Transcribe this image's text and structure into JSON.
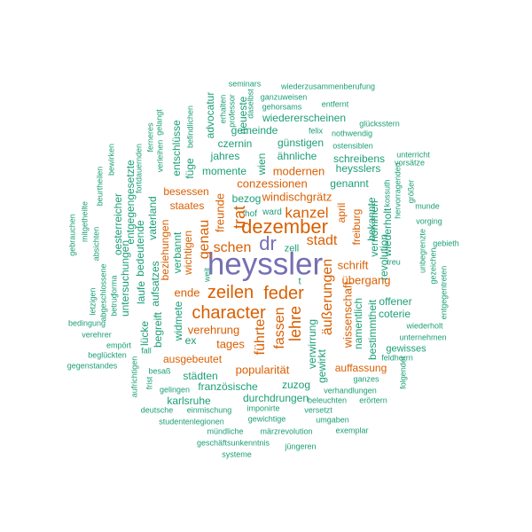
{
  "colors": {
    "small": "#1b9e77",
    "medium": "#d95f02",
    "large": "#7570b3"
  },
  "words": {
    "heyssler": "heyssler",
    "dr": "dr",
    "dezember": "dezember",
    "character": "character",
    "zeilen": "zeilen",
    "feder": "feder",
    "kanzel": "kanzel",
    "lehre": "lehre",
    "stadt": "stadt",
    "schen": "schen",
    "genau": "genau",
    "trat": "trat",
    "fassen": "fassen",
    "fuehrte": "führte",
    "aeusserungen": "äußerungen",
    "windischgraetz": "windischgrätz",
    "conzessionen": "conzessionen",
    "modernen": "modernen",
    "freunde": "freunde",
    "popularitaet": "popularität",
    "verehrung": "verehrung",
    "ende": "ende",
    "tages": "tages",
    "schrift": "schrift",
    "uebergang": "übergang",
    "wissenschaft": "wissenschaft",
    "ausgebeutet": "ausgebeutet",
    "auffassung": "auffassung",
    "staates": "staates",
    "besessen": "besessen",
    "freiburg": "freiburg",
    "april": "april",
    "wichtigen": "wichtigen",
    "beziehungen": "beziehungen",
    "gemeinde": "gemeinde",
    "wiedererscheinen": "wiedererscheinen",
    "neueste": "neueste",
    "advocatur": "advocatur",
    "czernin": "czernin",
    "guenstigen": "günstigen",
    "aehnliche": "ähnliche",
    "schreibens": "schreibens",
    "heysslers": "heysslers",
    "jahres": "jahres",
    "momente": "momente",
    "fuege": "füge",
    "entschluesse": "entschlüsse",
    "genannt": "genannt",
    "bekannte": "bekannte",
    "vernommen": "vernommen",
    "wiederholt": "wiederholt",
    "revolution": "revolution",
    "bezog": "bezog",
    "hof": "hof",
    "ward": "ward",
    "zell": "zell",
    "t": "t",
    "wien": "wien",
    "offener": "offener",
    "coterie": "coterie",
    "namentlich": "namentlich",
    "bestimmtheit": "bestimmtheit",
    "gewisses": "gewisses",
    "verwirrung": "verwirrung",
    "gewirkt": "gewirkt",
    "zuzog": "zuzog",
    "staedten": "städten",
    "franzoesische": "französische",
    "durchdrungen": "durchdrungen",
    "karlsruhe": "karlsruhe",
    "ex": "ex",
    "begreift": "begreift",
    "widmete": "widmete",
    "luecke": "lücke",
    "laufe": "laufe",
    "aufsatzes": "aufsatzes",
    "verbannt": "verbannt",
    "vaterland": "vaterland",
    "bedeutende": "bedeutende",
    "entgegengesetzte": "entgegengesetzte",
    "untersuchungen": "untersuchungen",
    "oesterreicher": "oesterreicher",
    "fortdauernden": "fortdauernden",
    "weit": "weit",
    "seminars": "seminars",
    "wiederzusammenberufung": "wiederzusammenberufung",
    "ganzuweisen": "ganzuweisen",
    "gehorsams": "gehorsams",
    "entfernt": "entfernt",
    "erhalten": "erhalten",
    "professor": "professor",
    "daselbst": "daselbst",
    "befindlichen": "befindlichen",
    "gelangt": "gelangt",
    "ferneres": "ferneres",
    "verleihen": "verleihen",
    "glueckssstern": "glücksstern",
    "felix": "felix",
    "nothwendig": "nothwendig",
    "ostensiblen": "ostensiblen",
    "unterricht": "unterricht",
    "vorsaetze": "vorsätze",
    "kossuth": "kossuth",
    "hervorragenden": "hervorragenden",
    "groesser": "größer",
    "munde": "munde",
    "unbegraenzte": "unbegrenzte",
    "vorging": "vorging",
    "gebieth": "gebieth",
    "gezeichen": "gezeichen",
    "entgegentreten": "entgegentreten",
    "treu": "treu",
    "feldherrn": "feldherrn",
    "bewirken": "bewirken",
    "beurtheilen": "beurtheilen",
    "absichten": "absichten",
    "mitgetheilte": "mitgetheilte",
    "gebrauchen": "gebrauchen",
    "abgeschlossene": "abgeschlossene",
    "letzigen": "letzigen",
    "betrug": "betrug",
    "forma": "forma",
    "bedingung": "bedingung",
    "verehrer": "verehrer",
    "empoert": "empört",
    "fall": "fall",
    "beglueckten": "beglückten",
    "gegenstandes": "gegenstandes",
    "besass": "besaß",
    "aufrichtigen": "aufrichtigen",
    "frist": "frist",
    "gelingen": "gelingen",
    "einmischung": "einmischung",
    "deutsche": "deutsche",
    "studentenlegionen": "studentenlegionen",
    "muendliche": "mündliche",
    "maerzrevolution": "märzrevolution",
    "exemplar": "exemplar",
    "geschaeftsunkenntnis": "geschäftsunkenntnis",
    "juengeren": "jüngeren",
    "systeme": "systeme",
    "imponirte": "imponirte",
    "gewichtige": "gewichtige",
    "versetzt": "versetzt",
    "umgaben": "umgaben",
    "beleuchten": "beleuchten",
    "eroertern": "erörtern",
    "verhandlungen": "verhandlungen",
    "ganzes": "ganzes",
    "folgender": "folgender",
    "unternehmen": "unternehmen",
    "wiederholt2": "wiederholt"
  }
}
